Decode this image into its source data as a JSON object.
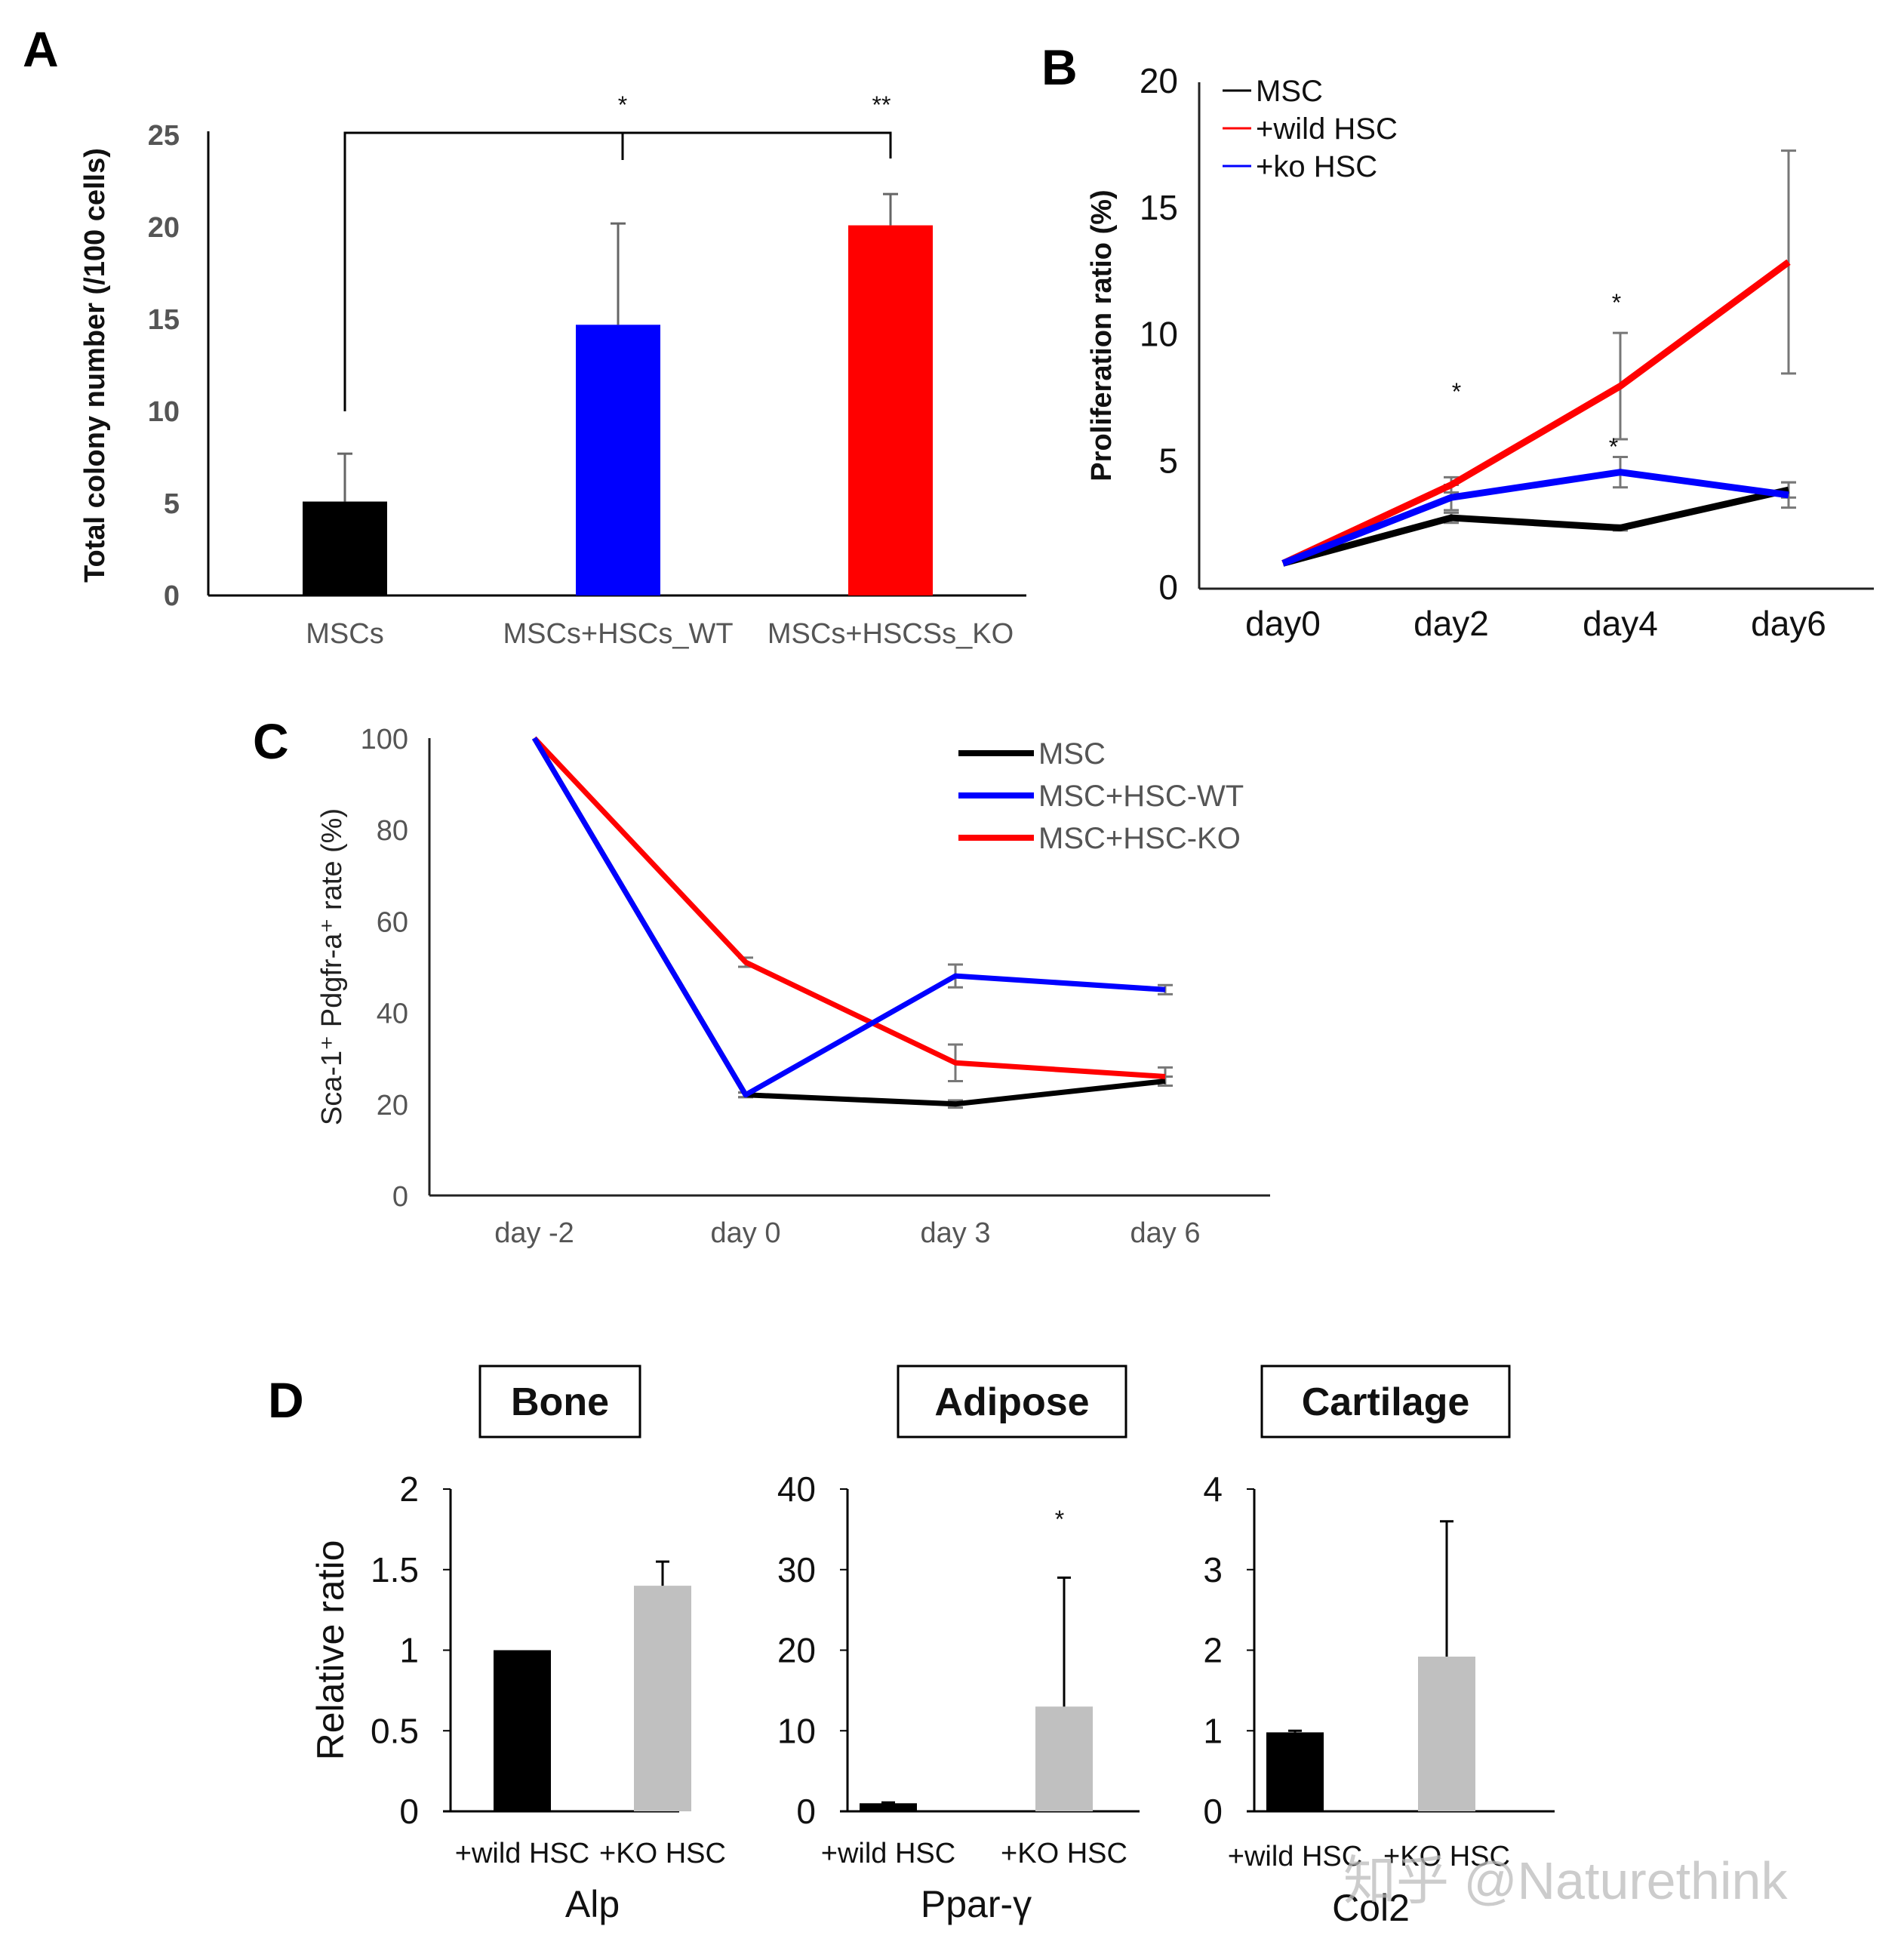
{
  "watermark": "知乎 @Naturethink",
  "chart_data": [
    {
      "panel": "A",
      "type": "bar",
      "title": "",
      "xlabel": "",
      "ylabel": "Total colony number (/100 cells)",
      "ylim": [
        0,
        25
      ],
      "yticks": [
        0,
        5,
        10,
        15,
        20,
        25
      ],
      "categories": [
        "MSCs",
        "MSCs+HSCs_WT",
        "MSCs+HSCSs_KO"
      ],
      "values": [
        5.1,
        14.7,
        20.1
      ],
      "errors": [
        2.6,
        5.5,
        1.7
      ],
      "colors": [
        "#000000",
        "#0000ff",
        "#ff0000"
      ],
      "annotations": [
        {
          "text": "*",
          "between": [
            "MSCs",
            "MSCs+HSCs_WT"
          ]
        },
        {
          "text": "**",
          "between": [
            "MSCs",
            "MSCs+HSCSs_KO"
          ]
        }
      ],
      "grid": false
    },
    {
      "panel": "B",
      "type": "line",
      "title": "",
      "xlabel": "",
      "ylabel": "Proliferation ratio (%)",
      "ylim": [
        0,
        20
      ],
      "yticks": [
        0,
        5,
        10,
        15,
        20
      ],
      "x": [
        "day0",
        "day2",
        "day4",
        "day6"
      ],
      "series": [
        {
          "name": "MSC",
          "color": "#000000",
          "values": [
            1.0,
            2.8,
            2.4,
            3.9
          ],
          "errors": [
            0,
            0.2,
            0.1,
            0.3
          ]
        },
        {
          "name": "+wild HSC",
          "color": "#ff0000",
          "values": [
            1.0,
            4.1,
            8.0,
            12.9
          ],
          "errors": [
            0,
            0.3,
            2.1,
            4.4
          ]
        },
        {
          "name": "+ko HSC",
          "color": "#0000ff",
          "values": [
            1.0,
            3.6,
            4.6,
            3.7
          ],
          "errors": [
            0,
            0.5,
            0.6,
            0.5
          ]
        }
      ],
      "annotations": [
        {
          "text": "*",
          "x": "day2"
        },
        {
          "text": "*",
          "x": "day4",
          "series": "+wild HSC"
        },
        {
          "text": "*",
          "x": "day4",
          "series": "+ko HSC"
        }
      ],
      "legend": "top-left",
      "grid": false
    },
    {
      "panel": "C",
      "type": "line",
      "title": "",
      "xlabel": "",
      "ylabel": "Sca-1⁺ Pdgfr-a⁺ rate (%)",
      "ylim": [
        0,
        100
      ],
      "yticks": [
        0,
        20,
        40,
        60,
        80,
        100
      ],
      "x": [
        "day -2",
        "day 0",
        "day 3",
        "day 6"
      ],
      "series": [
        {
          "name": "MSC",
          "color": "#000000",
          "values": [
            100,
            22,
            20,
            25
          ],
          "errors": [
            0,
            0.5,
            0.8,
            1.0
          ]
        },
        {
          "name": "MSC+HSC-WT",
          "color": "#0000ff",
          "values": [
            100,
            22,
            48,
            45
          ],
          "errors": [
            0,
            0.5,
            2.5,
            1.0
          ]
        },
        {
          "name": "MSC+HSC-KO",
          "color": "#ff0000",
          "values": [
            100,
            51,
            29,
            26
          ],
          "errors": [
            0,
            1.0,
            4.0,
            2.0
          ]
        }
      ],
      "legend": "top-right",
      "grid": false
    },
    {
      "panel": "D",
      "type": "bar",
      "ylabel": "Relative ratio",
      "subcharts": [
        {
          "box_title": "Bone",
          "gene": "Alp",
          "ylim": [
            0,
            2
          ],
          "yticks": [
            "0",
            "0.5",
            "1",
            "1.5",
            "2"
          ],
          "categories": [
            "+wild HSC",
            "+KO HSC"
          ],
          "values": [
            1.0,
            1.4
          ],
          "errors": [
            0,
            0.15
          ],
          "colors": [
            "#000000",
            "#c0c0c0"
          ],
          "annotation": ""
        },
        {
          "box_title": "Adipose",
          "gene": "Ppar-γ",
          "ylim": [
            0,
            40
          ],
          "yticks": [
            "0",
            "10",
            "20",
            "30",
            "40"
          ],
          "categories": [
            "+wild HSC",
            "+KO HSC"
          ],
          "values": [
            1.0,
            13.0
          ],
          "errors": [
            0.1,
            16.0
          ],
          "colors": [
            "#000000",
            "#c0c0c0"
          ],
          "annotation": "*"
        },
        {
          "box_title": "Cartilage",
          "gene": "Col2",
          "ylim": [
            0,
            4
          ],
          "yticks": [
            "0",
            "1",
            "2",
            "3",
            "4"
          ],
          "categories": [
            "+wild HSC",
            "+KO HSC"
          ],
          "values": [
            0.98,
            1.92
          ],
          "errors": [
            0.02,
            1.68
          ],
          "colors": [
            "#000000",
            "#c0c0c0"
          ],
          "annotation": ""
        }
      ]
    }
  ],
  "labels": {
    "A": "A",
    "B": "B",
    "C": "C",
    "D": "D"
  }
}
